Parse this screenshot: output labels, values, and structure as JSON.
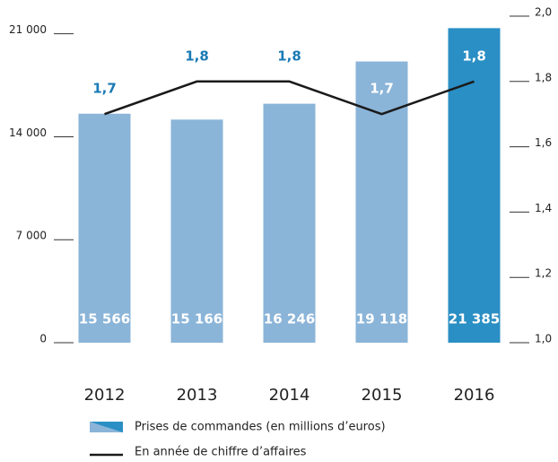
{
  "chart_data": {
    "type": "bar",
    "categories": [
      "2012",
      "2013",
      "2014",
      "2015",
      "2016"
    ],
    "series": [
      {
        "name": "Prises de commandes (en millions d’euros)",
        "type": "bar",
        "axis": "y",
        "colors": [
          "#8ab4d8",
          "#8ab4d8",
          "#8ab4d8",
          "#8ab4d8",
          "#2a8fc4"
        ],
        "values": [
          15566,
          15166,
          16246,
          19118,
          21385
        ],
        "value_labels": [
          "15 566",
          "15 166",
          "16 246",
          "19 118",
          "21 385"
        ]
      },
      {
        "name": "En année de chiffre d’affaires",
        "type": "line",
        "axis": "y2",
        "color": "#1a1a1a",
        "values": [
          1.7,
          1.8,
          1.8,
          1.7,
          1.8
        ],
        "value_labels": [
          "1,7",
          "1,8",
          "1,8",
          "1,7",
          "1,8"
        ]
      }
    ],
    "ylim": [
      0,
      22200
    ],
    "yticks": [
      0,
      {
        "value": 7000,
        "label": "7 000"
      },
      {
        "value": 14000,
        "label": "14 000"
      },
      {
        "value": 21000,
        "label": "21 000"
      }
    ],
    "y2lim": [
      1.0,
      2.0
    ],
    "y2ticks": [
      {
        "value": 1.0,
        "label": "1,0"
      },
      {
        "value": 1.2,
        "label": "1,2"
      },
      {
        "value": 1.4,
        "label": "1,4"
      },
      {
        "value": 1.6,
        "label": "1,6"
      },
      {
        "value": 1.8,
        "label": "1,8"
      },
      {
        "value": 2.0,
        "label": "2,0"
      }
    ],
    "label_color": "#1a7ab5"
  }
}
